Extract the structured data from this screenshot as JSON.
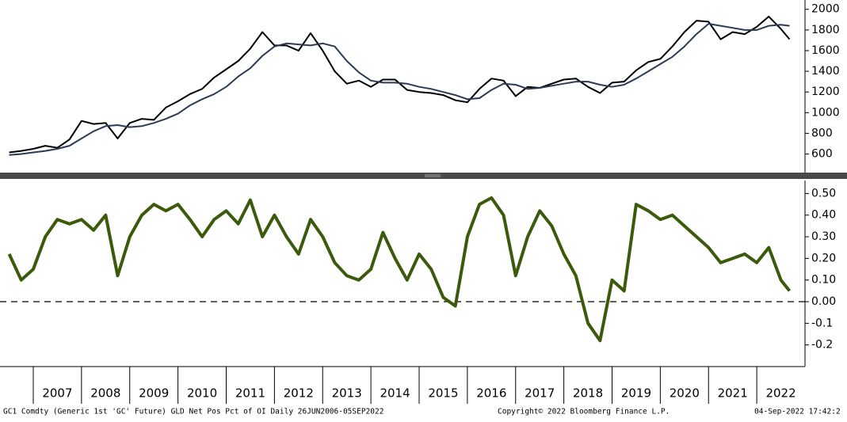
{
  "chart_data": [
    {
      "type": "line",
      "x": [
        2006.5,
        2006.75,
        2007,
        2007.25,
        2007.5,
        2007.75,
        2008,
        2008.25,
        2008.5,
        2008.75,
        2009,
        2009.25,
        2009.5,
        2009.75,
        2010,
        2010.25,
        2010.5,
        2010.75,
        2011,
        2011.25,
        2011.5,
        2011.75,
        2012,
        2012.25,
        2012.5,
        2012.75,
        2013,
        2013.25,
        2013.5,
        2013.75,
        2014,
        2014.25,
        2014.5,
        2014.75,
        2015,
        2015.25,
        2015.5,
        2015.75,
        2016,
        2016.25,
        2016.5,
        2016.75,
        2017,
        2017.25,
        2017.5,
        2017.75,
        2018,
        2018.25,
        2018.5,
        2018.75,
        2019,
        2019.25,
        2019.5,
        2019.75,
        2020,
        2020.25,
        2020.5,
        2020.75,
        2021,
        2021.25,
        2021.5,
        2021.75,
        2022,
        2022.25,
        2022.5,
        2022.68
      ],
      "series": [
        {
          "color": "#000000",
          "values": [
            615,
            630,
            650,
            680,
            660,
            740,
            920,
            890,
            900,
            750,
            900,
            940,
            930,
            1050,
            1110,
            1180,
            1230,
            1340,
            1420,
            1500,
            1620,
            1780,
            1650,
            1650,
            1600,
            1770,
            1600,
            1400,
            1280,
            1310,
            1250,
            1320,
            1320,
            1220,
            1200,
            1190,
            1170,
            1120,
            1100,
            1230,
            1330,
            1310,
            1160,
            1250,
            1240,
            1280,
            1320,
            1330,
            1250,
            1190,
            1290,
            1300,
            1410,
            1490,
            1520,
            1640,
            1780,
            1890,
            1880,
            1710,
            1780,
            1760,
            1830,
            1930,
            1810,
            1710
          ]
        },
        {
          "color": "#2b3a55",
          "values": [
            590,
            600,
            615,
            630,
            650,
            680,
            750,
            820,
            870,
            880,
            860,
            870,
            900,
            940,
            990,
            1070,
            1130,
            1180,
            1250,
            1350,
            1430,
            1550,
            1640,
            1670,
            1660,
            1650,
            1670,
            1640,
            1500,
            1390,
            1310,
            1290,
            1290,
            1280,
            1250,
            1230,
            1200,
            1170,
            1130,
            1140,
            1220,
            1280,
            1270,
            1230,
            1240,
            1260,
            1280,
            1300,
            1300,
            1270,
            1250,
            1270,
            1330,
            1400,
            1470,
            1540,
            1640,
            1760,
            1860,
            1840,
            1820,
            1800,
            1800,
            1840,
            1850,
            1840
          ]
        }
      ],
      "xlim": [
        2006.31,
        2023.0
      ],
      "ylim": [
        420,
        2090
      ],
      "yticks": [
        600,
        800,
        1000,
        1200,
        1400,
        1600,
        1800,
        2000
      ]
    },
    {
      "type": "line",
      "x": [
        2006.5,
        2006.75,
        2007,
        2007.25,
        2007.5,
        2007.75,
        2008,
        2008.25,
        2008.5,
        2008.75,
        2009,
        2009.25,
        2009.5,
        2009.75,
        2010,
        2010.25,
        2010.5,
        2010.75,
        2011,
        2011.25,
        2011.5,
        2011.75,
        2012,
        2012.25,
        2012.5,
        2012.75,
        2013,
        2013.25,
        2013.5,
        2013.75,
        2014,
        2014.25,
        2014.5,
        2014.75,
        2015,
        2015.25,
        2015.5,
        2015.75,
        2016,
        2016.25,
        2016.5,
        2016.75,
        2017,
        2017.25,
        2017.5,
        2017.75,
        2018,
        2018.25,
        2018.5,
        2018.75,
        2019,
        2019.25,
        2019.5,
        2019.75,
        2020,
        2020.25,
        2020.5,
        2020.75,
        2021,
        2021.25,
        2021.5,
        2021.75,
        2022,
        2022.25,
        2022.5,
        2022.68
      ],
      "series": [
        {
          "color": "#3b5a0c",
          "values": [
            0.22,
            0.1,
            0.15,
            0.3,
            0.38,
            0.36,
            0.38,
            0.33,
            0.4,
            0.12,
            0.3,
            0.4,
            0.45,
            0.42,
            0.45,
            0.38,
            0.3,
            0.38,
            0.42,
            0.36,
            0.47,
            0.3,
            0.4,
            0.3,
            0.22,
            0.38,
            0.3,
            0.18,
            0.12,
            0.1,
            0.15,
            0.32,
            0.2,
            0.1,
            0.22,
            0.15,
            0.02,
            -0.02,
            0.3,
            0.45,
            0.48,
            0.4,
            0.12,
            0.3,
            0.42,
            0.35,
            0.22,
            0.12,
            -0.1,
            -0.18,
            0.1,
            0.05,
            0.45,
            0.42,
            0.38,
            0.4,
            0.35,
            0.3,
            0.25,
            0.18,
            0.2,
            0.22,
            0.18,
            0.25,
            0.1,
            0.05
          ]
        }
      ],
      "xlim": [
        2006.31,
        2023.0
      ],
      "ylim": [
        -0.3,
        0.56
      ],
      "yticks": [
        {
          "value": 0.5,
          "label": "0.50"
        },
        {
          "value": 0.4,
          "label": "0.40"
        },
        {
          "value": 0.3,
          "label": "0.30"
        },
        {
          "value": 0.2,
          "label": "0.20"
        },
        {
          "value": 0.1,
          "label": "0.10"
        },
        {
          "value": 0,
          "label": "0.00"
        },
        -0.1,
        -0.2
      ],
      "reference_line": 0,
      "xticks": [
        {
          "value": 2007,
          "label": "2007"
        },
        {
          "value": 2008,
          "label": "2008"
        },
        {
          "value": 2009,
          "label": "2009"
        },
        {
          "value": 2010,
          "label": "2010"
        },
        {
          "value": 2011,
          "label": "2011"
        },
        {
          "value": 2012,
          "label": "2012"
        },
        {
          "value": 2013,
          "label": "2013"
        },
        {
          "value": 2014,
          "label": "2014"
        },
        {
          "value": 2015,
          "label": "2015"
        },
        {
          "value": 2016,
          "label": "2016"
        },
        {
          "value": 2017,
          "label": "2017"
        },
        {
          "value": 2018,
          "label": "2018"
        },
        {
          "value": 2019,
          "label": "2019"
        },
        {
          "value": 2020,
          "label": "2020"
        },
        {
          "value": 2021,
          "label": "2021"
        },
        {
          "value": 2022,
          "label": "2022"
        }
      ],
      "footer": "GC1 Comdty (Generic 1st 'GC' Future) GLD Net Pos Pct of OI  Daily 26JUN2006-05SEP2022",
      "copyright": "Copyright© 2022 Bloomberg Finance L.P.",
      "timestamp": "04-Sep-2022 17:42:2"
    }
  ]
}
